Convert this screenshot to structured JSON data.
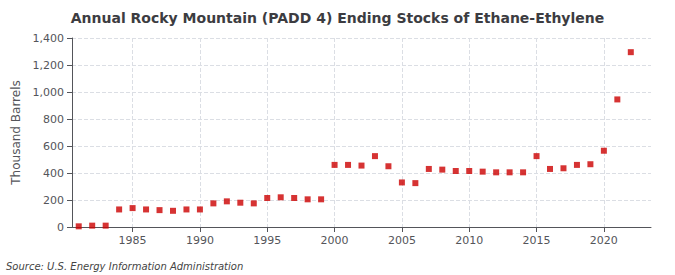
{
  "chart_data": {
    "type": "scatter",
    "title": "Annual Rocky Mountain (PADD 4) Ending Stocks of Ethane-Ethylene",
    "ylabel": "Thousand Barrels",
    "source": "Source: U.S. Energy Information Administration",
    "x": [
      1981,
      1982,
      1983,
      1984,
      1985,
      1986,
      1987,
      1988,
      1989,
      1990,
      1991,
      1992,
      1993,
      1994,
      1995,
      1996,
      1997,
      1998,
      1999,
      2000,
      2001,
      2002,
      2003,
      2004,
      2005,
      2006,
      2007,
      2008,
      2009,
      2010,
      2011,
      2012,
      2013,
      2014,
      2015,
      2016,
      2017,
      2018,
      2019,
      2020,
      2021,
      2022
    ],
    "values": [
      5,
      10,
      10,
      130,
      140,
      130,
      125,
      120,
      130,
      130,
      175,
      190,
      180,
      175,
      215,
      220,
      215,
      205,
      205,
      460,
      460,
      455,
      525,
      450,
      330,
      325,
      430,
      425,
      415,
      415,
      410,
      405,
      405,
      405,
      525,
      430,
      435,
      460,
      465,
      565,
      945,
      1295
    ],
    "color": "#cc0000",
    "marker": "square",
    "xlim": [
      1980.5,
      2023.5
    ],
    "xticks": [
      1985,
      1990,
      1995,
      2000,
      2005,
      2010,
      2015,
      2020
    ],
    "ylim": [
      0,
      1400
    ],
    "yticks": [
      0,
      200,
      400,
      600,
      800,
      {
        "value": 1000,
        "label": "1,000"
      },
      {
        "value": 1200,
        "label": "1,200"
      },
      {
        "value": 1400,
        "label": "1,400"
      }
    ],
    "grid": true
  }
}
